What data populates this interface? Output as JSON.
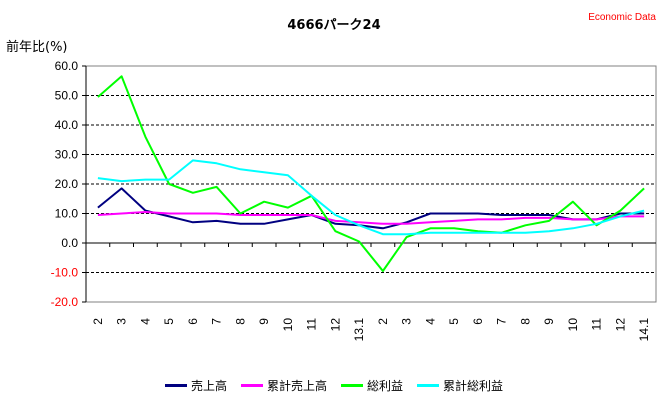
{
  "chart_data": {
    "type": "line",
    "title": "4666パーク24",
    "source": "Economic Data",
    "ylabel": "前年比(%)",
    "ylim": [
      -20,
      60
    ],
    "yticks": [
      "60.0",
      "50.0",
      "40.0",
      "30.0",
      "20.0",
      "10.0",
      "0.0",
      "-10.0",
      "-20.0"
    ],
    "ytick_values": [
      60,
      50,
      40,
      30,
      20,
      10,
      0,
      -10,
      -20
    ],
    "categories": [
      "2",
      "3",
      "4",
      "5",
      "6",
      "7",
      "8",
      "9",
      "10",
      "11",
      "12",
      "13.1",
      "2",
      "3",
      "4",
      "5",
      "6",
      "7",
      "8",
      "9",
      "10",
      "11",
      "12",
      "14.1"
    ],
    "grid": "horizontal-dashed",
    "legend_position": "bottom",
    "series": [
      {
        "name": "売上高",
        "color": "#000080",
        "values": [
          12,
          18.5,
          11,
          9,
          7,
          7.5,
          6.5,
          6.5,
          8,
          9.5,
          6.5,
          6,
          5,
          7,
          10,
          10,
          10,
          9.5,
          9.5,
          9.5,
          8,
          8,
          10,
          10
        ]
      },
      {
        "name": "累計売上高",
        "color": "#ff00ff",
        "values": [
          9.5,
          10,
          10.5,
          10,
          10,
          10,
          9.5,
          9.5,
          9.5,
          9.5,
          7.5,
          7,
          6.5,
          6.5,
          7,
          7.5,
          8,
          8,
          8.5,
          8.5,
          8,
          8,
          9,
          9
        ]
      },
      {
        "name": "総利益",
        "color": "#00ff00",
        "values": [
          49.5,
          56.5,
          36,
          20,
          17,
          19,
          10,
          14,
          12,
          16,
          4,
          0.5,
          -9.5,
          2,
          5,
          5,
          4,
          3.5,
          6,
          7.5,
          14,
          6,
          11,
          18.5
        ]
      },
      {
        "name": "累計総利益",
        "color": "#00ffff",
        "values": [
          22,
          21,
          21.5,
          21.5,
          28,
          27,
          25,
          24,
          23,
          16,
          9.5,
          6,
          3,
          3,
          3.5,
          3.5,
          3.5,
          3.5,
          3.5,
          4,
          5,
          6.5,
          9,
          11
        ]
      }
    ]
  }
}
